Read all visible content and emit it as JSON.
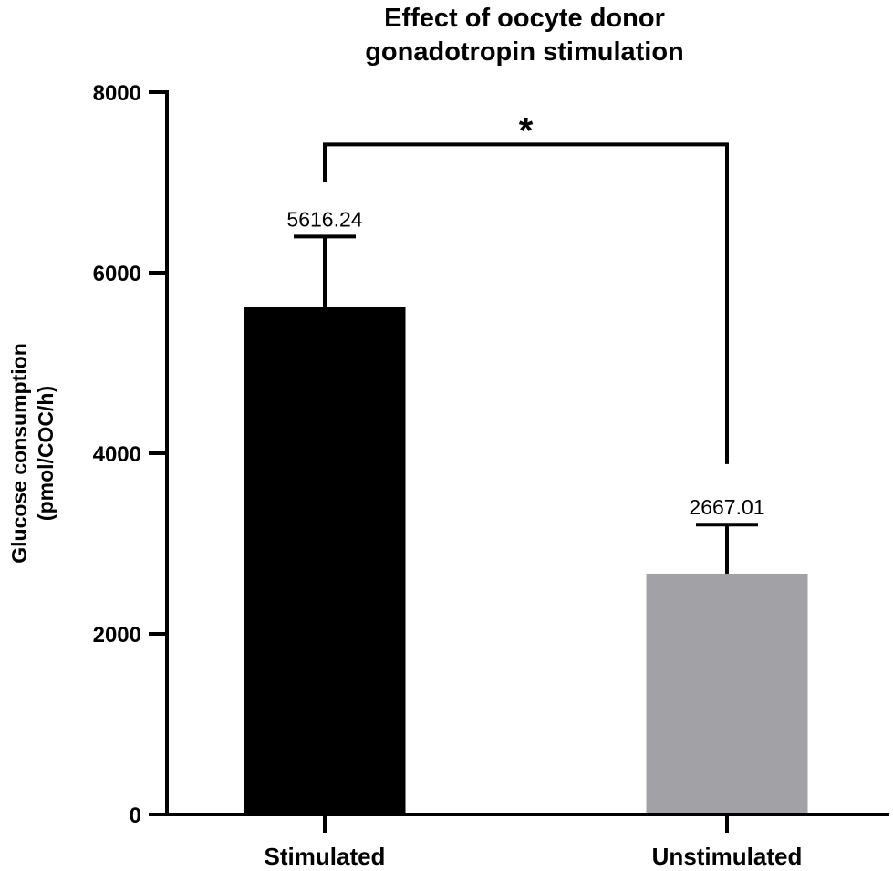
{
  "chart_data": {
    "type": "bar",
    "title": "Effect of oocyte donor gonadotropin stimulation",
    "title_lines": [
      "Effect of oocyte donor",
      "gonadotropin stimulation"
    ],
    "ylabel": "Glucose consumption (pmol/COC/h)",
    "ylabel_lines": [
      "Glucose consumption",
      "(pmol/COC/h)"
    ],
    "xlabel": "",
    "categories": [
      "Stimulated",
      "Unstimulated"
    ],
    "values": [
      5616.24,
      2667.01
    ],
    "data_labels": [
      "5616.24",
      "2667.01"
    ],
    "error_upper": [
      6400,
      3210
    ],
    "bar_colors": [
      "#000000",
      "#a2a1a6"
    ],
    "ylim": [
      0,
      8000
    ],
    "yticks": [
      0,
      2000,
      4000,
      6000,
      8000
    ],
    "ytick_labels": [
      "0",
      "2000",
      "4000",
      "6000",
      "8000"
    ],
    "grid": false,
    "significance": {
      "label": "*",
      "between": [
        0,
        1
      ],
      "bracket_y": 7420,
      "left_drop_to": 7000,
      "right_drop_to": 3880
    }
  }
}
